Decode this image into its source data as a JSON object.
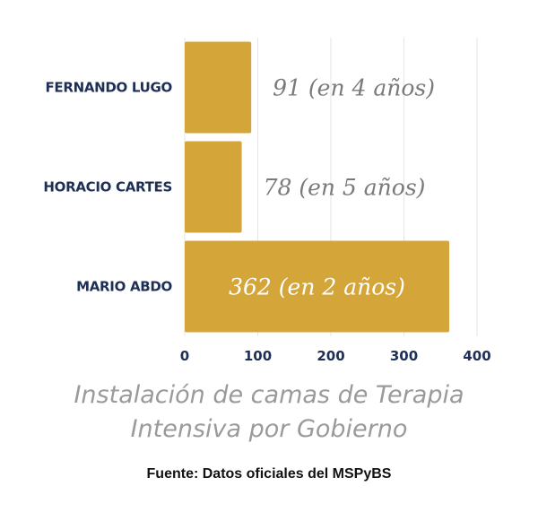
{
  "chart_data": {
    "type": "bar",
    "orientation": "horizontal",
    "categories": [
      "FERNANDO LUGO",
      "HORACIO CARTES",
      "MARIO ABDO"
    ],
    "values": [
      91,
      78,
      362
    ],
    "data_labels": [
      "91 (en 4 años)",
      "78 (en 5 años)",
      "362 (en 2 años)"
    ],
    "xlim": [
      0,
      400
    ],
    "x_ticks": [
      0,
      100,
      200,
      300,
      400
    ],
    "grid": "vertical",
    "legend": "none",
    "colors": {
      "bar": "#d4a63a",
      "category_label": "#1e2f55",
      "data_label_outside": "#7a7a7a",
      "data_label_inside": "#ffffff",
      "grid": "#e6e6e6"
    }
  },
  "caption": {
    "line1": "Instalación de camas de Terapia",
    "line2": "Intensiva por Gobierno"
  },
  "source": "Fuente: Datos oficiales del MSPyBS"
}
